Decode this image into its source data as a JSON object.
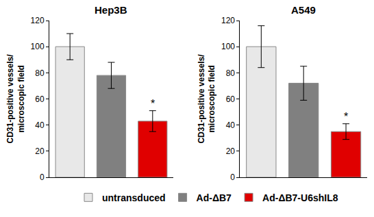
{
  "chart_data": [
    {
      "type": "bar",
      "title": "Hep3B",
      "y_label": "CD31-positive vessels/\nmicroscopic field",
      "categories": [
        "untransduced",
        "Ad-ΔB7",
        "Ad-ΔB7-U6shIL8"
      ],
      "values": [
        100,
        78,
        43
      ],
      "errors": [
        10,
        10,
        8
      ],
      "colors": [
        "#e8e8e8",
        "#808080",
        "#e00000"
      ],
      "ylim": [
        0,
        120
      ],
      "yticks": [
        0,
        20,
        40,
        60,
        80,
        100,
        120
      ],
      "grid": false,
      "tick_labels": "y",
      "legend": "bottom",
      "annotations": [
        {
          "category": "Ad-ΔB7-U6shIL8",
          "text": "*"
        }
      ]
    },
    {
      "type": "bar",
      "title": "A549",
      "y_label": "CD31-positive vessels/\nmicroscopic field",
      "categories": [
        "untransduced",
        "Ad-ΔB7",
        "Ad-ΔB7-U6shIL8"
      ],
      "values": [
        100,
        72,
        35
      ],
      "errors": [
        16,
        13,
        6
      ],
      "colors": [
        "#e8e8e8",
        "#808080",
        "#e00000"
      ],
      "ylim": [
        0,
        120
      ],
      "yticks": [
        0,
        20,
        40,
        60,
        80,
        100,
        120
      ],
      "grid": false,
      "tick_labels": "y",
      "legend": "bottom",
      "annotations": [
        {
          "category": "Ad-ΔB7-U6shIL8",
          "text": "*"
        }
      ]
    }
  ]
}
